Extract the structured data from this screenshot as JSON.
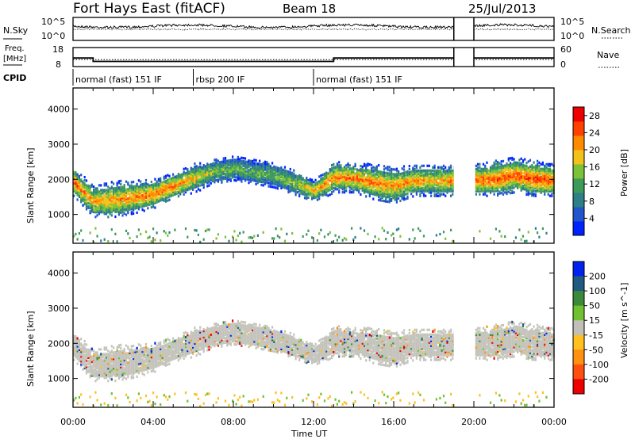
{
  "header": {
    "site": "Fort Hays East (fitACF)",
    "beam": "Beam 18",
    "date": "25/Jul/2013"
  },
  "noise_panel": {
    "left_label": "N.Sky",
    "right_label": "N.Search",
    "left_ticks": [
      "10^5",
      "10^0"
    ],
    "right_ticks": [
      "10^5",
      "10^0"
    ]
  },
  "freq_panel": {
    "left_label_1": "Freq.",
    "left_label_2": "[MHz]",
    "right_label": "Nave",
    "left_ticks": [
      "18",
      "8"
    ],
    "right_ticks": [
      "60",
      "0"
    ],
    "freq_series": [
      {
        "t": 0,
        "v": 12.5
      },
      {
        "t": 1.0,
        "v": 12.5
      },
      {
        "t": 1.0,
        "v": 10.7
      },
      {
        "t": 13.0,
        "v": 10.7
      },
      {
        "t": 13.0,
        "v": 12.5
      },
      {
        "t": 19.0,
        "v": 12.5
      },
      {
        "t": 20.0,
        "v": 12.5
      },
      {
        "t": 24.0,
        "v": 12.5
      }
    ],
    "nave_level": 22
  },
  "cpid": {
    "label": "CPID",
    "segments": [
      {
        "start": 0.0,
        "label": "normal (fast) 151 IF"
      },
      {
        "start": 6.0,
        "label": "rbsp 200 IF"
      },
      {
        "start": 12.0,
        "label": "normal (fast) 151 IF"
      }
    ]
  },
  "chart_data": [
    {
      "type": "heatmap",
      "title": "",
      "xlabel": "Time UT",
      "ylabel": "Slant Range [km]",
      "xlim": [
        0,
        24
      ],
      "ylim": [
        180,
        4600
      ],
      "xticks": [
        "00:00",
        "04:00",
        "08:00",
        "12:00",
        "16:00",
        "20:00",
        "00:00"
      ],
      "yticks": [
        1000,
        2000,
        3000,
        4000
      ],
      "data_gap_ut": [
        19.0,
        20.0
      ],
      "colorbar": {
        "label": "Power [dB]",
        "ticks": [
          4,
          8,
          12,
          16,
          20,
          24,
          28
        ],
        "range": [
          0,
          30
        ],
        "colors": [
          "#0022ff",
          "#2255cc",
          "#2e7f86",
          "#3c9a5a",
          "#7cc236",
          "#f2c21a",
          "#ff8a00",
          "#ff4000",
          "#ee0000"
        ]
      },
      "scatter_bands": [
        {
          "t": 0.0,
          "r_low": 1700,
          "r_high": 2250,
          "power": 25
        },
        {
          "t": 1.0,
          "r_low": 1100,
          "r_high": 1700,
          "power": 22
        },
        {
          "t": 2.0,
          "r_low": 1100,
          "r_high": 1800,
          "power": 22
        },
        {
          "t": 3.0,
          "r_low": 1200,
          "r_high": 1850,
          "power": 23
        },
        {
          "t": 4.0,
          "r_low": 1350,
          "r_high": 1900,
          "power": 24
        },
        {
          "t": 5.0,
          "r_low": 1600,
          "r_high": 2100,
          "power": 24
        },
        {
          "t": 6.0,
          "r_low": 1800,
          "r_high": 2350,
          "power": 20
        },
        {
          "t": 7.0,
          "r_low": 2000,
          "r_high": 2500,
          "power": 15
        },
        {
          "t": 8.0,
          "r_low": 2100,
          "r_high": 2600,
          "power": 14
        },
        {
          "t": 9.0,
          "r_low": 2000,
          "r_high": 2500,
          "power": 14
        },
        {
          "t": 10.0,
          "r_low": 1900,
          "r_high": 2400,
          "power": 14
        },
        {
          "t": 11.0,
          "r_low": 1700,
          "r_high": 2200,
          "power": 16
        },
        {
          "t": 12.0,
          "r_low": 1500,
          "r_high": 1900,
          "power": 22
        },
        {
          "t": 13.0,
          "r_low": 1800,
          "r_high": 2400,
          "power": 24
        },
        {
          "t": 14.0,
          "r_low": 1800,
          "r_high": 2350,
          "power": 24
        },
        {
          "t": 15.0,
          "r_low": 1600,
          "r_high": 2300,
          "power": 23
        },
        {
          "t": 16.0,
          "r_low": 1500,
          "r_high": 2200,
          "power": 22
        },
        {
          "t": 17.0,
          "r_low": 1700,
          "r_high": 2300,
          "power": 22
        },
        {
          "t": 18.0,
          "r_low": 1700,
          "r_high": 2300,
          "power": 20
        },
        {
          "t": 20.0,
          "r_low": 1700,
          "r_high": 2300,
          "power": 25
        },
        {
          "t": 21.0,
          "r_low": 1700,
          "r_high": 2400,
          "power": 25
        },
        {
          "t": 22.0,
          "r_low": 1800,
          "r_high": 2500,
          "power": 25
        },
        {
          "t": 23.0,
          "r_low": 1700,
          "r_high": 2400,
          "power": 26
        },
        {
          "t": 24.0,
          "r_low": 1700,
          "r_high": 2300,
          "power": 26
        }
      ]
    },
    {
      "type": "heatmap",
      "title": "",
      "xlabel": "Time UT",
      "ylabel": "Slant Range [km]",
      "xlim": [
        0,
        24
      ],
      "ylim": [
        180,
        4600
      ],
      "xticks": [
        "00:00",
        "04:00",
        "08:00",
        "12:00",
        "16:00",
        "20:00",
        "00:00"
      ],
      "yticks": [
        1000,
        2000,
        3000,
        4000
      ],
      "data_gap_ut": [
        19.0,
        20.0
      ],
      "colorbar": {
        "label": "Velocity [m s^-1]",
        "ticks": [
          "200",
          "100",
          "50",
          "15",
          "-15",
          "-50",
          "-100",
          "-200"
        ],
        "colors": [
          "#0022ee",
          "#205a80",
          "#3a8a3a",
          "#70c030",
          "#c0c0b8",
          "#ffc020",
          "#ff9010",
          "#ff5010",
          "#ee0000"
        ]
      }
    }
  ]
}
